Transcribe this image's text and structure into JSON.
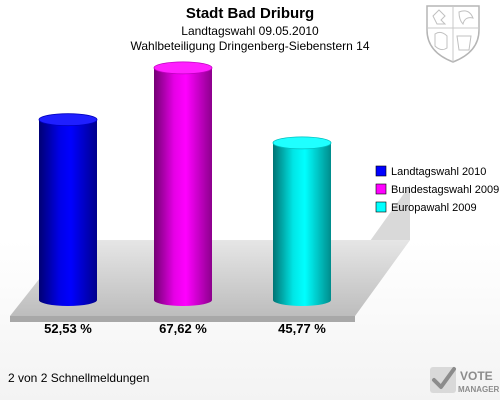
{
  "header": {
    "title": "Stadt Bad Driburg",
    "line1": "Landtagswahl 09.05.2010",
    "line2": "Wahlbeteiligung Dringenberg-Siebenstern 14"
  },
  "footer": {
    "text": "2 von 2 Schnellmeldungen"
  },
  "branding": {
    "line1": "VOTE",
    "line2": "MANAGER",
    "logo_icon": "coat-of-arms-icon",
    "brand_icon": "checkmark-icon"
  },
  "chart_data": {
    "type": "bar",
    "title": "",
    "xlabel": "",
    "ylabel": "",
    "ylim": [
      0,
      75
    ],
    "legend_position": "right",
    "grid": false,
    "series": [
      {
        "name": "Landtagswahl 2010",
        "value": 52.53,
        "label": "52,53 %",
        "color": "#0000ff"
      },
      {
        "name": "Bundestagswahl 2009",
        "value": 67.62,
        "label": "67,62 %",
        "color": "#ff00ff"
      },
      {
        "name": "Europawahl 2009",
        "value": 45.77,
        "label": "45,77 %",
        "color": "#00ffff"
      }
    ]
  }
}
